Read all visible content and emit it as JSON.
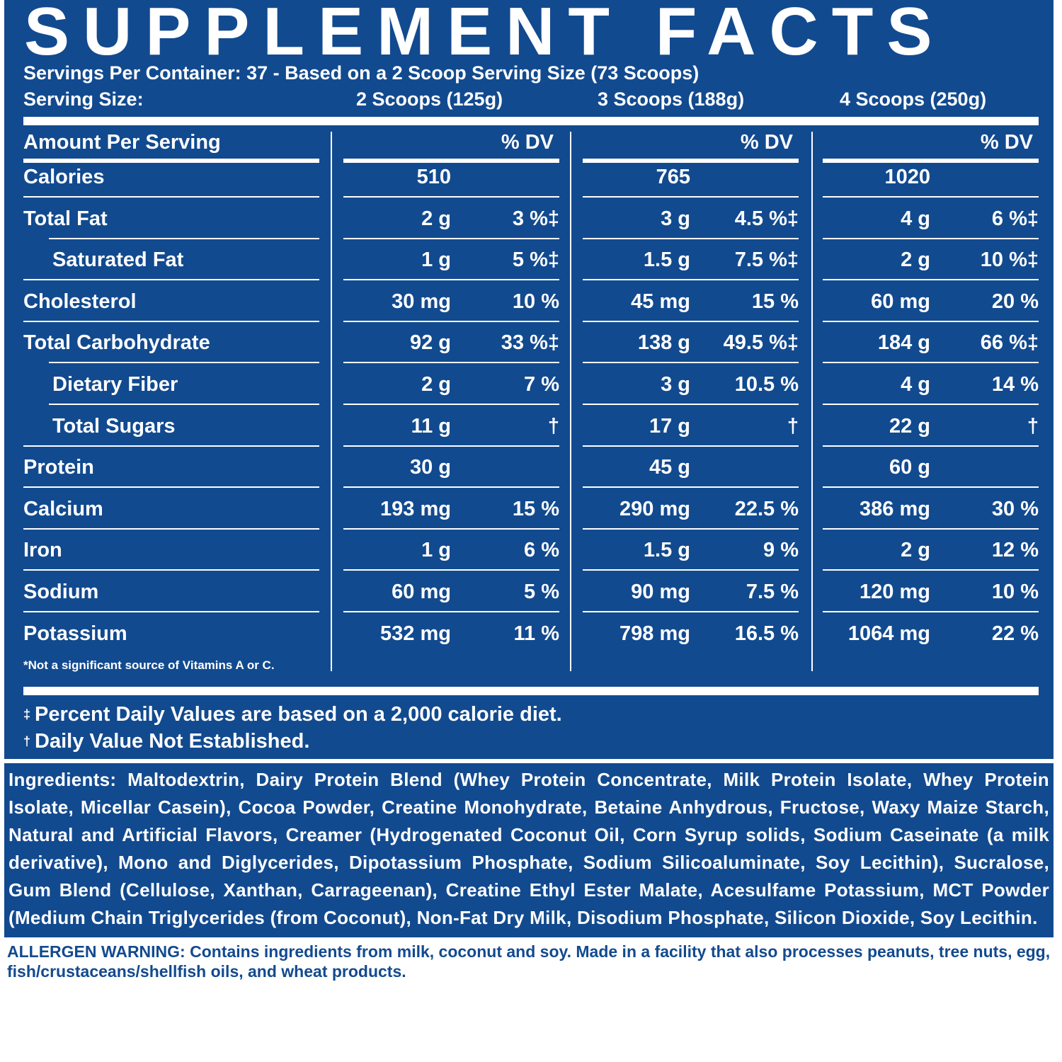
{
  "title": "SUPPLEMENT FACTS",
  "servings_line": "Servings Per Container: 37 - Based on a 2 Scoop Serving Size (73 Scoops)",
  "serving_size_label": "Serving Size:",
  "columns": [
    "2 Scoops (125g)",
    "3 Scoops (188g)",
    "4 Scoops (250g)"
  ],
  "amount_header": "Amount Per Serving",
  "dv_header": "% DV",
  "rows": [
    {
      "name": "Calories",
      "indent": false,
      "vals": [
        [
          "510",
          ""
        ],
        [
          "765",
          ""
        ],
        [
          "1020",
          ""
        ]
      ]
    },
    {
      "name": "Total Fat",
      "indent": false,
      "vals": [
        [
          "2 g",
          "3 %‡"
        ],
        [
          "3 g",
          "4.5 %‡"
        ],
        [
          "4 g",
          "6 %‡"
        ]
      ]
    },
    {
      "name": "Saturated Fat",
      "indent": true,
      "vals": [
        [
          "1 g",
          "5 %‡"
        ],
        [
          "1.5 g",
          "7.5 %‡"
        ],
        [
          "2 g",
          "10 %‡"
        ]
      ]
    },
    {
      "name": "Cholesterol",
      "indent": false,
      "vals": [
        [
          "30 mg",
          "10 %"
        ],
        [
          "45 mg",
          "15 %"
        ],
        [
          "60 mg",
          "20 %"
        ]
      ]
    },
    {
      "name": "Total Carbohydrate",
      "indent": false,
      "vals": [
        [
          "92 g",
          "33 %‡"
        ],
        [
          "138 g",
          "49.5 %‡"
        ],
        [
          "184 g",
          "66 %‡"
        ]
      ]
    },
    {
      "name": "Dietary Fiber",
      "indent": true,
      "vals": [
        [
          "2 g",
          "7 %"
        ],
        [
          "3 g",
          "10.5 %"
        ],
        [
          "4 g",
          "14 %"
        ]
      ]
    },
    {
      "name": "Total Sugars",
      "indent": true,
      "vals": [
        [
          "11 g",
          "†"
        ],
        [
          "17 g",
          "†"
        ],
        [
          "22 g",
          "†"
        ]
      ]
    },
    {
      "name": "Protein",
      "indent": false,
      "vals": [
        [
          "30 g",
          ""
        ],
        [
          "45 g",
          ""
        ],
        [
          "60 g",
          ""
        ]
      ]
    },
    {
      "name": "Calcium",
      "indent": false,
      "vals": [
        [
          "193 mg",
          "15 %"
        ],
        [
          "290 mg",
          "22.5 %"
        ],
        [
          "386 mg",
          "30 %"
        ]
      ]
    },
    {
      "name": "Iron",
      "indent": false,
      "vals": [
        [
          "1 g",
          "6 %"
        ],
        [
          "1.5 g",
          "9 %"
        ],
        [
          "2 g",
          "12 %"
        ]
      ]
    },
    {
      "name": "Sodium",
      "indent": false,
      "vals": [
        [
          "60 mg",
          "5 %"
        ],
        [
          "90 mg",
          "7.5 %"
        ],
        [
          "120 mg",
          "10 %"
        ]
      ]
    },
    {
      "name": "Potassium",
      "indent": false,
      "vals": [
        [
          "532 mg",
          "11 %"
        ],
        [
          "798 mg",
          "16.5 %"
        ],
        [
          "1064 mg",
          "22 %"
        ]
      ]
    }
  ],
  "vitamin_note": "*Not a significant source of Vitamins A or C.",
  "footnotes": [
    {
      "symbol": "‡",
      "text": "Percent Daily Values are based on a 2,000 calorie diet."
    },
    {
      "symbol": "†",
      "text": "Daily Value Not Established."
    }
  ],
  "ingredients_label": "Ingredients:",
  "ingredients_text": "Maltodextrin, Dairy Protein Blend (Whey Protein Concentrate, Milk Protein Isolate, Whey Protein Isolate, Micellar Casein), Cocoa Powder, Creatine  Monohydrate, Betaine Anhydrous, Fructose, Waxy Maize Starch, Natural and Artificial Flavors, Creamer (Hydrogenated Coconut Oil, Corn Syrup solids, Sodium Caseinate (a milk derivative), Mono and Diglycerides, Dipotassium Phosphate, Sodium Silicoaluminate, Soy Lecithin), Sucralose, Gum Blend (Cellulose, Xanthan, Carrageenan), Creatine Ethyl Ester Malate, Acesulfame Potassium, MCT Powder (Medium Chain Triglycerides (from Coconut), Non-Fat Dry Milk, Disodium Phosphate, Silicon Dioxide, Soy Lecithin.",
  "allergen_label": "ALLERGEN WARNING:",
  "allergen_bold": "Contains ingredients from milk, coconut and soy.",
  "allergen_rest": "Made in a facility that also processes peanuts, tree nuts, egg, fish/crustaceans/shellfish oils, and wheat products.",
  "colors": {
    "brand_blue": "#124a8f",
    "text": "#ffffff"
  }
}
